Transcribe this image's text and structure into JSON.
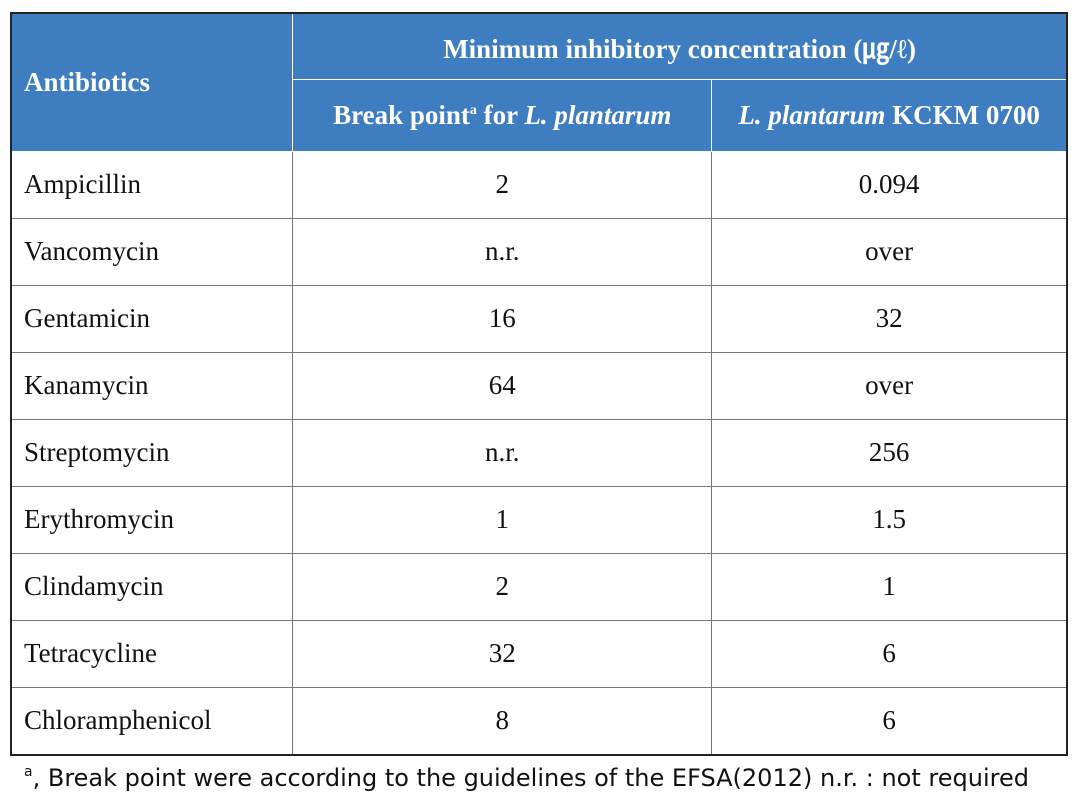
{
  "header": {
    "antibiotics": "Antibiotics",
    "mic": "Minimum inhibitory concentration (㎍/ℓ)",
    "break_point": {
      "text": "Break point",
      "sup": "a",
      "for": "for",
      "species": "L. plantarum"
    },
    "strain": {
      "species": "L. plantarum",
      "name": "KCKM 0700"
    }
  },
  "table": {
    "rows": [
      [
        "Ampicillin",
        "2",
        "0.094"
      ],
      [
        "Vancomycin",
        "n.r.",
        "over"
      ],
      [
        "Gentamicin",
        "16",
        "32"
      ],
      [
        "Kanamycin",
        "64",
        "over"
      ],
      [
        "Streptomycin",
        "n.r.",
        "256"
      ],
      [
        "Erythromycin",
        "1",
        "1.5"
      ],
      [
        "Clindamycin",
        "2",
        "1"
      ],
      [
        "Tetracycline",
        "32",
        "6"
      ],
      [
        "Chloramphenicol",
        "8",
        "6"
      ]
    ]
  },
  "footnote": {
    "sup": "a",
    "text": ", Break point were according to the guidelines of the EFSA(2012) n.r. : not required"
  }
}
